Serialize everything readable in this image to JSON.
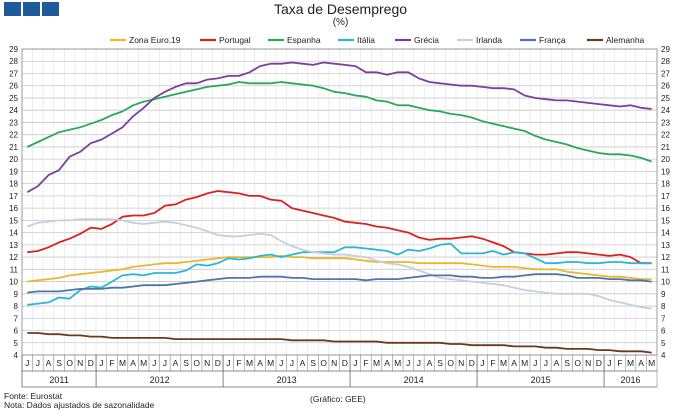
{
  "header": {
    "title": "Taxa de Desemprego",
    "unit": "(%)"
  },
  "footer": {
    "source": "Fonte: Eurostat",
    "note": "Nota: Dados ajustados de sazonalidade",
    "credit": "(Gráfico: GEE)"
  },
  "chart_data": {
    "type": "line",
    "title": "Taxa de Desemprego",
    "ylabel": "%",
    "ylim": [
      4,
      29
    ],
    "yticks": [
      4,
      5,
      6,
      7,
      8,
      9,
      10,
      11,
      12,
      13,
      14,
      15,
      16,
      17,
      18,
      19,
      20,
      21,
      22,
      23,
      24,
      25,
      26,
      27,
      28,
      29
    ],
    "grid": true,
    "legend_position": "top",
    "months": [
      "J",
      "J",
      "A",
      "S",
      "O",
      "N",
      "D",
      "J",
      "F",
      "M",
      "A",
      "M",
      "J",
      "J",
      "A",
      "S",
      "O",
      "N",
      "D",
      "J",
      "F",
      "M",
      "A",
      "M",
      "J",
      "J",
      "A",
      "S",
      "O",
      "N",
      "D",
      "J",
      "F",
      "M",
      "A",
      "M",
      "J",
      "J",
      "A",
      "S",
      "O",
      "N",
      "D",
      "J",
      "F",
      "M",
      "A",
      "M",
      "J",
      "J",
      "A",
      "S",
      "O",
      "N",
      "D",
      "J",
      "F",
      "M",
      "A",
      "M"
    ],
    "year_groups": [
      {
        "label": "2011",
        "start": 0,
        "end": 6
      },
      {
        "label": "2012",
        "start": 7,
        "end": 18
      },
      {
        "label": "2013",
        "start": 19,
        "end": 30
      },
      {
        "label": "2014",
        "start": 31,
        "end": 42
      },
      {
        "label": "2015",
        "start": 43,
        "end": 54
      },
      {
        "label": "2016",
        "start": 55,
        "end": 59
      }
    ],
    "series": [
      {
        "name": "Zona Euro.19",
        "color": "#e8b82e",
        "values": [
          10.0,
          10.1,
          10.2,
          10.3,
          10.5,
          10.6,
          10.7,
          10.8,
          10.9,
          11.0,
          11.2,
          11.3,
          11.4,
          11.5,
          11.5,
          11.6,
          11.7,
          11.8,
          11.9,
          12.0,
          12.0,
          12.0,
          12.0,
          12.0,
          12.1,
          12.0,
          12.0,
          11.9,
          11.9,
          11.9,
          11.9,
          11.8,
          11.7,
          11.6,
          11.6,
          11.6,
          11.6,
          11.5,
          11.5,
          11.5,
          11.5,
          11.5,
          11.4,
          11.3,
          11.2,
          11.2,
          11.2,
          11.1,
          11.0,
          11.0,
          11.0,
          10.8,
          10.7,
          10.6,
          10.5,
          10.4,
          10.4,
          10.3,
          10.2,
          10.2
        ]
      },
      {
        "name": "Portugal",
        "color": "#d92323",
        "values": [
          12.4,
          12.5,
          12.8,
          13.2,
          13.5,
          13.9,
          14.4,
          14.3,
          14.7,
          15.3,
          15.4,
          15.4,
          15.6,
          16.2,
          16.3,
          16.7,
          16.9,
          17.2,
          17.4,
          17.3,
          17.2,
          17.0,
          17.0,
          16.7,
          16.6,
          16.0,
          15.8,
          15.6,
          15.4,
          15.2,
          14.9,
          14.8,
          14.7,
          14.5,
          14.4,
          14.2,
          14.0,
          13.6,
          13.4,
          13.5,
          13.5,
          13.6,
          13.7,
          13.5,
          13.2,
          12.9,
          12.4,
          12.3,
          12.2,
          12.2,
          12.3,
          12.4,
          12.4,
          12.3,
          12.2,
          12.1,
          12.2,
          12.0,
          11.5,
          11.5
        ]
      },
      {
        "name": "Espanha",
        "color": "#2aa85a",
        "values": [
          21.0,
          21.4,
          21.8,
          22.2,
          22.4,
          22.6,
          22.9,
          23.2,
          23.6,
          23.9,
          24.4,
          24.7,
          24.9,
          25.1,
          25.3,
          25.5,
          25.7,
          25.9,
          26.0,
          26.1,
          26.3,
          26.2,
          26.2,
          26.2,
          26.3,
          26.2,
          26.1,
          26.0,
          25.8,
          25.5,
          25.4,
          25.2,
          25.1,
          24.8,
          24.7,
          24.4,
          24.4,
          24.2,
          24.0,
          23.9,
          23.7,
          23.6,
          23.4,
          23.1,
          22.9,
          22.7,
          22.5,
          22.3,
          21.9,
          21.6,
          21.4,
          21.2,
          20.9,
          20.7,
          20.5,
          20.4,
          20.4,
          20.3,
          20.1,
          19.8
        ]
      },
      {
        "name": "Itália",
        "color": "#2ab7d6",
        "values": [
          8.1,
          8.2,
          8.3,
          8.7,
          8.6,
          9.3,
          9.6,
          9.5,
          10.0,
          10.5,
          10.6,
          10.5,
          10.7,
          10.7,
          10.7,
          10.9,
          11.4,
          11.3,
          11.5,
          11.9,
          11.8,
          11.9,
          12.1,
          12.2,
          12.0,
          12.2,
          12.4,
          12.4,
          12.4,
          12.4,
          12.8,
          12.8,
          12.7,
          12.6,
          12.5,
          12.2,
          12.6,
          12.5,
          12.7,
          13.0,
          13.1,
          12.3,
          12.3,
          12.3,
          12.5,
          12.2,
          12.4,
          12.3,
          11.9,
          11.5,
          11.5,
          11.6,
          11.6,
          11.5,
          11.5,
          11.6,
          11.6,
          11.5,
          11.5,
          11.5
        ]
      },
      {
        "name": "Grécia",
        "color": "#7b3f9c",
        "values": [
          17.3,
          17.8,
          18.7,
          19.1,
          20.2,
          20.6,
          21.3,
          21.6,
          22.1,
          22.6,
          23.5,
          24.2,
          25.0,
          25.5,
          25.9,
          26.2,
          26.2,
          26.5,
          26.6,
          26.8,
          26.8,
          27.1,
          27.6,
          27.8,
          27.8,
          27.9,
          27.8,
          27.7,
          27.9,
          27.8,
          27.7,
          27.6,
          27.1,
          27.1,
          26.9,
          27.1,
          27.1,
          26.6,
          26.3,
          26.2,
          26.1,
          26.0,
          26.0,
          25.9,
          25.8,
          25.8,
          25.7,
          25.2,
          25.0,
          24.9,
          24.8,
          24.8,
          24.7,
          24.6,
          24.5,
          24.4,
          24.3,
          24.4,
          24.2,
          24.1
        ]
      },
      {
        "name": "Irlanda",
        "color": "#c6cfdc",
        "values": [
          14.5,
          14.8,
          14.9,
          15.0,
          15.0,
          15.1,
          15.1,
          15.1,
          15.1,
          15.0,
          14.8,
          14.7,
          14.8,
          14.9,
          14.8,
          14.6,
          14.4,
          14.1,
          13.8,
          13.7,
          13.7,
          13.8,
          13.9,
          13.8,
          13.3,
          12.9,
          12.6,
          12.4,
          12.3,
          12.2,
          12.2,
          12.1,
          12.0,
          11.7,
          11.5,
          11.4,
          11.2,
          10.9,
          10.6,
          10.3,
          10.2,
          10.1,
          10.0,
          9.9,
          9.8,
          9.7,
          9.5,
          9.3,
          9.2,
          9.1,
          9.0,
          9.0,
          9.0,
          9.0,
          8.8,
          8.5,
          8.3,
          8.1,
          7.9,
          7.8
        ]
      },
      {
        "name": "França",
        "color": "#4f76a8",
        "values": [
          9.1,
          9.2,
          9.2,
          9.2,
          9.3,
          9.4,
          9.4,
          9.4,
          9.5,
          9.5,
          9.6,
          9.7,
          9.7,
          9.7,
          9.8,
          9.9,
          10.0,
          10.1,
          10.2,
          10.3,
          10.3,
          10.3,
          10.4,
          10.4,
          10.4,
          10.3,
          10.3,
          10.2,
          10.2,
          10.2,
          10.2,
          10.2,
          10.1,
          10.2,
          10.2,
          10.2,
          10.3,
          10.4,
          10.5,
          10.5,
          10.5,
          10.4,
          10.4,
          10.3,
          10.3,
          10.4,
          10.4,
          10.5,
          10.6,
          10.6,
          10.6,
          10.5,
          10.3,
          10.3,
          10.3,
          10.2,
          10.2,
          10.1,
          10.1,
          10.0
        ]
      },
      {
        "name": "Alemanha",
        "color": "#6b3a1c",
        "values": [
          5.8,
          5.8,
          5.7,
          5.7,
          5.6,
          5.6,
          5.5,
          5.5,
          5.4,
          5.4,
          5.4,
          5.4,
          5.4,
          5.4,
          5.3,
          5.3,
          5.3,
          5.3,
          5.3,
          5.3,
          5.3,
          5.3,
          5.3,
          5.3,
          5.3,
          5.2,
          5.2,
          5.2,
          5.2,
          5.1,
          5.1,
          5.1,
          5.1,
          5.1,
          5.0,
          5.0,
          5.0,
          5.0,
          5.0,
          5.0,
          4.9,
          4.9,
          4.8,
          4.8,
          4.8,
          4.8,
          4.7,
          4.7,
          4.7,
          4.6,
          4.6,
          4.5,
          4.5,
          4.5,
          4.4,
          4.4,
          4.3,
          4.3,
          4.3,
          4.2
        ]
      }
    ]
  }
}
